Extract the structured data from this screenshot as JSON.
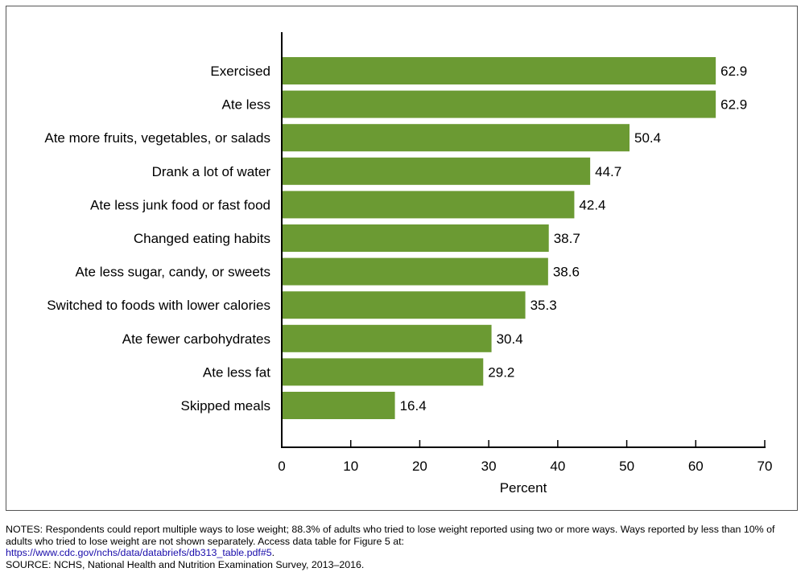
{
  "chart_data": {
    "type": "bar",
    "orientation": "horizontal",
    "categories": [
      "Exercised",
      "Ate less",
      "Ate more fruits, vegetables, or salads",
      "Drank a lot of water",
      "Ate less junk food or fast food",
      "Changed eating habits",
      "Ate less sugar, candy, or sweets",
      "Switched to foods with lower calories",
      "Ate fewer carbohydrates",
      "Ate less fat",
      "Skipped meals"
    ],
    "values": [
      62.9,
      62.9,
      50.4,
      44.7,
      42.4,
      38.7,
      38.6,
      35.3,
      30.4,
      29.2,
      16.4
    ],
    "data_labels": [
      "62.9",
      "62.9",
      "50.4",
      "44.7",
      "42.4",
      "38.7",
      "38.6",
      "35.3",
      "30.4",
      "29.2",
      "16.4"
    ],
    "xlabel": "Percent",
    "ylabel": "",
    "title": "",
    "xlim": [
      0,
      70
    ],
    "xticks": [
      0,
      10,
      20,
      30,
      40,
      50,
      60,
      70
    ],
    "xtick_labels": [
      "0",
      "10",
      "20",
      "30",
      "40",
      "50",
      "60",
      "70"
    ],
    "grid": false,
    "legend": "none",
    "colors": {
      "bar": "#6b9a33",
      "axis": "#000000"
    }
  },
  "notes": {
    "text": "NOTES: Respondents could report multiple ways to lose weight; 88.3% of adults who tried to lose weight reported using two or more ways. Ways reported by less than 10% of adults who tried to lose weight are not shown separately. Access data table for Figure 5 at:",
    "link": "https://www.cdc.gov/nchs/data/databriefs/db313_table.pdf#5",
    "link_suffix": ".",
    "source": "SOURCE: NCHS, National Health and Nutrition Examination Survey, 2013–2016."
  }
}
